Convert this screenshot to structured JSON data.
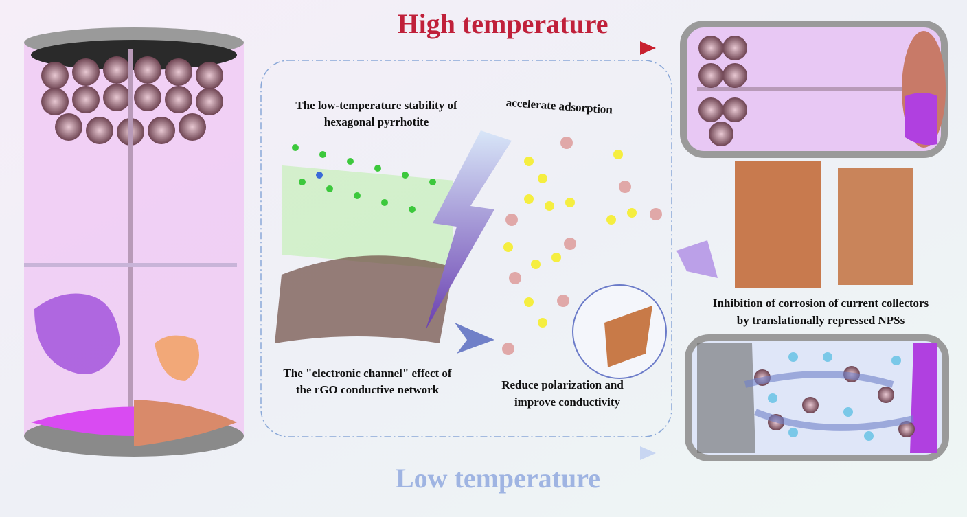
{
  "title_high": "High temperature",
  "title_low": "Low temperature",
  "annotations": [
    {
      "lines": [
        "The low-temperature stability of",
        "hexagonal pyrrhotite"
      ]
    },
    {
      "lines": [
        "accelerate adsorption"
      ]
    },
    {
      "lines": [
        "The \"electronic channel\" effect of",
        "the rGO conductive network"
      ]
    },
    {
      "lines": [
        "Reduce polarization and",
        "improve conductivity"
      ]
    },
    {
      "lines": [
        "Inhibition of corrosion of current collectors",
        "by translationally repressed NPSs"
      ]
    }
  ]
}
